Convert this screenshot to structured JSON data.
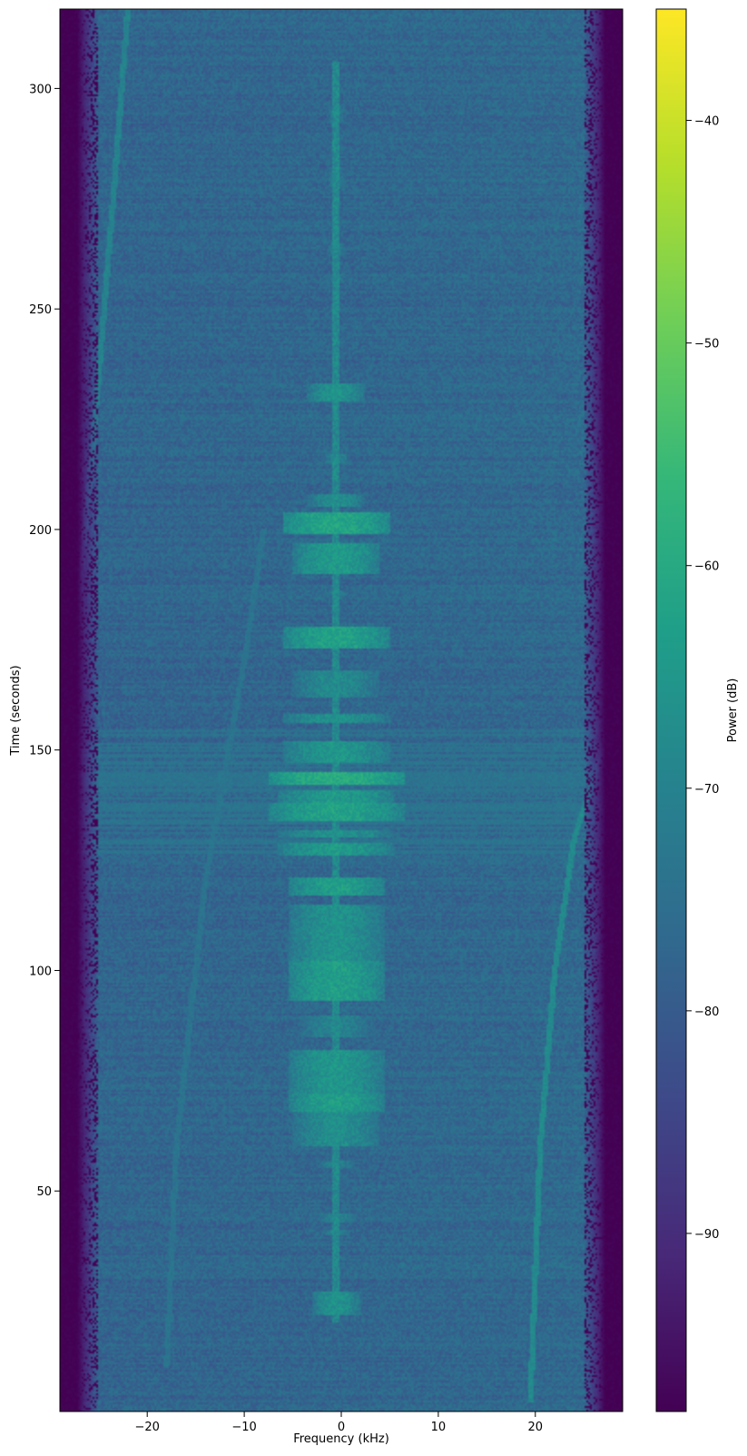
{
  "chart_data": {
    "type": "heatmap",
    "title": "",
    "xlabel": "Frequency (kHz)",
    "ylabel": "Time (seconds)",
    "xlim": [
      -29,
      29
    ],
    "ylim": [
      0,
      318
    ],
    "x_ticks": [
      {
        "value": -20,
        "label": "−20"
      },
      {
        "value": -10,
        "label": "−10"
      },
      {
        "value": 0,
        "label": "0"
      },
      {
        "value": 10,
        "label": "10"
      },
      {
        "value": 20,
        "label": "20"
      }
    ],
    "y_ticks": [
      {
        "value": 50,
        "label": "50"
      },
      {
        "value": 100,
        "label": "100"
      },
      {
        "value": 150,
        "label": "150"
      },
      {
        "value": 200,
        "label": "200"
      },
      {
        "value": 250,
        "label": "250"
      },
      {
        "value": 300,
        "label": "300"
      }
    ],
    "colormap": "viridis",
    "colorbar": {
      "label": "Power (dB)",
      "range": [
        -98,
        -35
      ],
      "ticks": [
        {
          "value": -40,
          "label": "−40"
        },
        {
          "value": -50,
          "label": "−50"
        },
        {
          "value": -60,
          "label": "−60"
        },
        {
          "value": -70,
          "label": "−70"
        },
        {
          "value": -80,
          "label": "−80"
        },
        {
          "value": -90,
          "label": "−90"
        }
      ]
    },
    "noise_floor_db": -77,
    "edge_rolloff_khz": 25,
    "carrier_khz": -0.5,
    "signal_bursts": [
      {
        "t0": 22,
        "t1": 27,
        "half_width_khz": 2.5,
        "level_db": -66
      },
      {
        "t0": 40,
        "t1": 41,
        "half_width_khz": 1.5,
        "level_db": -70
      },
      {
        "t0": 43,
        "t1": 45,
        "half_width_khz": 2,
        "level_db": -70
      },
      {
        "t0": 55,
        "t1": 57,
        "half_width_khz": 2,
        "level_db": -70
      },
      {
        "t0": 60,
        "t1": 68,
        "half_width_khz": 4.5,
        "level_db": -67
      },
      {
        "t0": 68,
        "t1": 72,
        "half_width_khz": 5,
        "level_db": -63
      },
      {
        "t0": 72,
        "t1": 82,
        "half_width_khz": 5,
        "level_db": -65
      },
      {
        "t0": 85,
        "t1": 90,
        "half_width_khz": 4,
        "level_db": -70
      },
      {
        "t0": 93,
        "t1": 102,
        "half_width_khz": 5,
        "level_db": -63
      },
      {
        "t0": 102,
        "t1": 115,
        "half_width_khz": 5,
        "level_db": -66
      },
      {
        "t0": 117,
        "t1": 121,
        "half_width_khz": 5,
        "level_db": -63
      },
      {
        "t0": 126,
        "t1": 129,
        "half_width_khz": 6,
        "level_db": -64
      },
      {
        "t0": 130,
        "t1": 132,
        "half_width_khz": 6,
        "level_db": -66
      },
      {
        "t0": 134,
        "t1": 138,
        "half_width_khz": 7,
        "level_db": -62
      },
      {
        "t0": 138,
        "t1": 141,
        "half_width_khz": 6,
        "level_db": -64
      },
      {
        "t0": 142,
        "t1": 145,
        "half_width_khz": 7,
        "level_db": -59
      },
      {
        "t0": 147,
        "t1": 152,
        "half_width_khz": 5.5,
        "level_db": -65
      },
      {
        "t0": 156,
        "t1": 158,
        "half_width_khz": 5.5,
        "level_db": -66
      },
      {
        "t0": 162,
        "t1": 168,
        "half_width_khz": 4.5,
        "level_db": -68
      },
      {
        "t0": 173,
        "t1": 178,
        "half_width_khz": 5.5,
        "level_db": -62
      },
      {
        "t0": 185,
        "t1": 186,
        "half_width_khz": 1,
        "level_db": -70
      },
      {
        "t0": 190,
        "t1": 197,
        "half_width_khz": 4.5,
        "level_db": -64
      },
      {
        "t0": 199,
        "t1": 204,
        "half_width_khz": 5.5,
        "level_db": -61
      },
      {
        "t0": 205,
        "t1": 208,
        "half_width_khz": 3,
        "level_db": -67
      },
      {
        "t0": 215,
        "t1": 217,
        "half_width_khz": 1.5,
        "level_db": -70
      },
      {
        "t0": 229,
        "t1": 233,
        "half_width_khz": 3,
        "level_db": -66
      },
      {
        "t0": 256,
        "t1": 258,
        "half_width_khz": 1,
        "level_db": -72
      },
      {
        "t0": 262,
        "t1": 265,
        "half_width_khz": 1,
        "level_db": -72
      },
      {
        "t0": 278,
        "t1": 282,
        "half_width_khz": 1,
        "level_db": -72
      },
      {
        "t0": 292,
        "t1": 296,
        "half_width_khz": 1,
        "level_db": -72
      }
    ],
    "interference_band": {
      "t0": 125,
      "t1": 155,
      "level_db": -74
    },
    "drifting_tones": [
      {
        "points": [
          [
            19.5,
            2
          ],
          [
            20.5,
            60
          ],
          [
            22,
            100
          ],
          [
            24,
            130
          ],
          [
            27,
            150
          ],
          [
            29,
            155
          ]
        ],
        "level_db": -68
      },
      {
        "points": [
          [
            -18,
            10
          ],
          [
            -17,
            60
          ],
          [
            -14,
            120
          ],
          [
            -10,
            170
          ],
          [
            -8,
            200
          ]
        ],
        "level_db": -74
      },
      {
        "points": [
          [
            -27,
            185
          ],
          [
            -25,
            235
          ],
          [
            -23.5,
            275
          ],
          [
            -22,
            318
          ]
        ],
        "level_db": -70
      }
    ]
  }
}
